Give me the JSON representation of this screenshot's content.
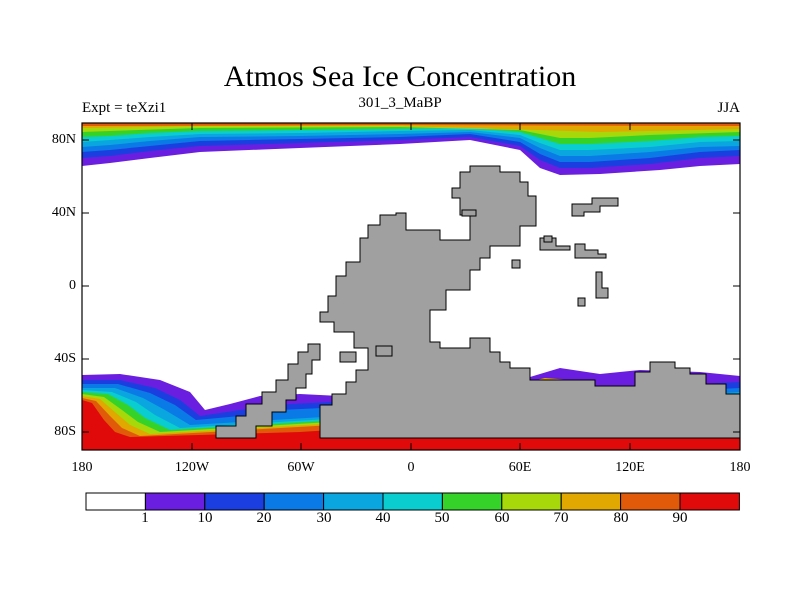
{
  "title": "Atmos Sea Ice Concentration",
  "subtitle_left": "Expt = teXzi1",
  "subtitle_center": "301_3_MaBP",
  "subtitle_right": "JJA",
  "lat_labels": [
    "80N",
    "40N",
    "0",
    "40S",
    "80S"
  ],
  "lon_labels": [
    "180",
    "120W",
    "60W",
    "0",
    "60E",
    "120E",
    "180"
  ],
  "colorbar": {
    "labels": [
      "1",
      "10",
      "20",
      "30",
      "40",
      "50",
      "60",
      "70",
      "80",
      "90"
    ],
    "colors": [
      "#ffffff",
      "#6a1fe0",
      "#1a3ee0",
      "#0a7ae6",
      "#0aa6e0",
      "#0acdd0",
      "#35d22a",
      "#a6d80a",
      "#e0a800",
      "#e05a0a",
      "#e00a0a"
    ]
  },
  "colors": {
    "land": "#a0a0a0",
    "ocean": "#ffffff",
    "frame": "#000000"
  }
}
